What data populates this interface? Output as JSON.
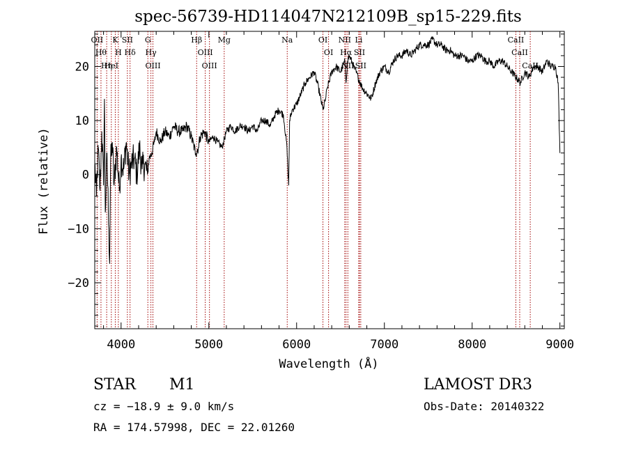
{
  "chart_data": {
    "type": "line",
    "title": "spec-56739-HD114047N212109B_sp15-229.fits",
    "xlabel": "Wavelength (Å)",
    "ylabel": "Flux (relative)",
    "xlim": [
      3700,
      9050
    ],
    "ylim": [
      -28.5,
      26.5
    ],
    "x_ticks": [
      {
        "value": 4000,
        "label": "4000"
      },
      {
        "value": 5000,
        "label": "5000"
      },
      {
        "value": 6000,
        "label": "6000"
      },
      {
        "value": 7000,
        "label": "7000"
      },
      {
        "value": 8000,
        "label": "8000"
      },
      {
        "value": 9000,
        "label": "9000"
      }
    ],
    "y_ticks": [
      {
        "value": -20,
        "label": "−20"
      },
      {
        "value": -10,
        "label": "−10"
      },
      {
        "value": 0,
        "label": "0"
      },
      {
        "value": 10,
        "label": "10"
      },
      {
        "value": 20,
        "label": "20"
      }
    ],
    "grid": false,
    "series": [
      {
        "name": "flux",
        "points": [
          [
            3700,
            2
          ],
          [
            3720,
            -4
          ],
          [
            3740,
            5
          ],
          [
            3760,
            -3
          ],
          [
            3780,
            8
          ],
          [
            3800,
            -2
          ],
          [
            3810,
            14
          ],
          [
            3820,
            -7
          ],
          [
            3840,
            4
          ],
          [
            3860,
            -10
          ],
          [
            3870,
            -16.5
          ],
          [
            3880,
            2
          ],
          [
            3900,
            6
          ],
          [
            3920,
            -2
          ],
          [
            3950,
            5
          ],
          [
            3980,
            -3
          ],
          [
            4000,
            3
          ],
          [
            4030,
            1
          ],
          [
            4060,
            6
          ],
          [
            4090,
            0
          ],
          [
            4120,
            2
          ],
          [
            4150,
            3
          ],
          [
            4180,
            0
          ],
          [
            4210,
            5
          ],
          [
            4240,
            1
          ],
          [
            4270,
            2
          ],
          [
            4300,
            0
          ],
          [
            4320,
            3
          ],
          [
            4350,
            4
          ],
          [
            4380,
            6
          ],
          [
            4400,
            8
          ],
          [
            4450,
            6
          ],
          [
            4500,
            8
          ],
          [
            4550,
            7
          ],
          [
            4600,
            9
          ],
          [
            4650,
            8
          ],
          [
            4700,
            8
          ],
          [
            4750,
            9
          ],
          [
            4800,
            7
          ],
          [
            4850,
            4
          ],
          [
            4880,
            5
          ],
          [
            4900,
            7
          ],
          [
            4950,
            8
          ],
          [
            5000,
            6
          ],
          [
            5050,
            7
          ],
          [
            5100,
            6
          ],
          [
            5150,
            5
          ],
          [
            5200,
            8
          ],
          [
            5250,
            9
          ],
          [
            5300,
            8
          ],
          [
            5350,
            9
          ],
          [
            5400,
            9
          ],
          [
            5450,
            8
          ],
          [
            5500,
            9
          ],
          [
            5550,
            8
          ],
          [
            5600,
            10
          ],
          [
            5650,
            10
          ],
          [
            5700,
            9
          ],
          [
            5750,
            11
          ],
          [
            5800,
            12
          ],
          [
            5850,
            11
          ],
          [
            5890,
            5
          ],
          [
            5900,
            1
          ],
          [
            5910,
            -2
          ],
          [
            5920,
            10
          ],
          [
            5950,
            12
          ],
          [
            6000,
            13
          ],
          [
            6050,
            15
          ],
          [
            6100,
            17
          ],
          [
            6150,
            18
          ],
          [
            6200,
            19
          ],
          [
            6250,
            16
          ],
          [
            6300,
            12
          ],
          [
            6330,
            14
          ],
          [
            6350,
            16
          ],
          [
            6400,
            19
          ],
          [
            6450,
            20
          ],
          [
            6500,
            19
          ],
          [
            6550,
            21
          ],
          [
            6563,
            17
          ],
          [
            6580,
            21
          ],
          [
            6600,
            22
          ],
          [
            6650,
            20
          ],
          [
            6700,
            18
          ],
          [
            6750,
            16
          ],
          [
            6800,
            15
          ],
          [
            6850,
            14
          ],
          [
            6900,
            17
          ],
          [
            6950,
            19
          ],
          [
            7000,
            20
          ],
          [
            7050,
            19
          ],
          [
            7100,
            21
          ],
          [
            7150,
            22
          ],
          [
            7200,
            22
          ],
          [
            7250,
            23
          ],
          [
            7300,
            22
          ],
          [
            7350,
            23
          ],
          [
            7400,
            24
          ],
          [
            7450,
            24
          ],
          [
            7500,
            24
          ],
          [
            7550,
            25
          ],
          [
            7600,
            24
          ],
          [
            7650,
            24
          ],
          [
            7700,
            23
          ],
          [
            7750,
            23
          ],
          [
            7800,
            22
          ],
          [
            7850,
            22
          ],
          [
            7900,
            22
          ],
          [
            7950,
            21
          ],
          [
            8000,
            21
          ],
          [
            8050,
            22
          ],
          [
            8100,
            22
          ],
          [
            8150,
            21
          ],
          [
            8200,
            21
          ],
          [
            8250,
            20
          ],
          [
            8300,
            21
          ],
          [
            8350,
            21
          ],
          [
            8400,
            20
          ],
          [
            8450,
            19
          ],
          [
            8500,
            18
          ],
          [
            8550,
            17
          ],
          [
            8600,
            19
          ],
          [
            8650,
            18
          ],
          [
            8700,
            20
          ],
          [
            8750,
            20
          ],
          [
            8800,
            19
          ],
          [
            8850,
            21
          ],
          [
            8900,
            20
          ],
          [
            8950,
            20
          ],
          [
            8980,
            17
          ],
          [
            9000,
            4
          ]
        ]
      }
    ],
    "line_markers": [
      {
        "wavelength": 3727,
        "label": "OII"
      },
      {
        "wavelength": 3771,
        "label": "H&#952;"
      },
      {
        "wavelength": 3836,
        "label": "H&#951;"
      },
      {
        "wavelength": 3889,
        "label": "HeI"
      },
      {
        "wavelength": 3934,
        "label": "K"
      },
      {
        "wavelength": 3969,
        "label": "H"
      },
      {
        "wavelength": 4072,
        "label": "SII"
      },
      {
        "wavelength": 4102,
        "label": "H&#948;"
      },
      {
        "wavelength": 4305,
        "label": "G"
      },
      {
        "wavelength": 4340,
        "label": "H&#947;"
      },
      {
        "wavelength": 4363,
        "label": "OIII"
      },
      {
        "wavelength": 4861,
        "label": "H&#946;"
      },
      {
        "wavelength": 4959,
        "label": "OIII"
      },
      {
        "wavelength": 5007,
        "label": "OIII"
      },
      {
        "wavelength": 5175,
        "label": "Mg"
      },
      {
        "wavelength": 5893,
        "label": "Na"
      },
      {
        "wavelength": 6300,
        "label": "OI"
      },
      {
        "wavelength": 6364,
        "label": "OI"
      },
      {
        "wavelength": 6548,
        "label": "NII"
      },
      {
        "wavelength": 6563,
        "label": "H&#945;"
      },
      {
        "wavelength": 6584,
        "label": "NII"
      },
      {
        "wavelength": 6708,
        "label": "Li"
      },
      {
        "wavelength": 6716,
        "label": "SII"
      },
      {
        "wavelength": 6731,
        "label": "SII"
      },
      {
        "wavelength": 8498,
        "label": "CaII"
      },
      {
        "wavelength": 8542,
        "label": "CaII"
      },
      {
        "wavelength": 8662,
        "label": "CaII"
      }
    ]
  },
  "info": {
    "object_class": "STAR",
    "subclass": "M1",
    "survey": "LAMOST DR3",
    "redshift_text": "cz = −18.9 ± 9.0 km/s",
    "obs_date_text": "Obs-Date: 20140322",
    "coords_text": "RA = 174.57998, DEC =  22.01260"
  },
  "colors": {
    "axis": "#000000",
    "spectrum": "#000000",
    "marker_line": "#a00000",
    "background": "#ffffff"
  }
}
